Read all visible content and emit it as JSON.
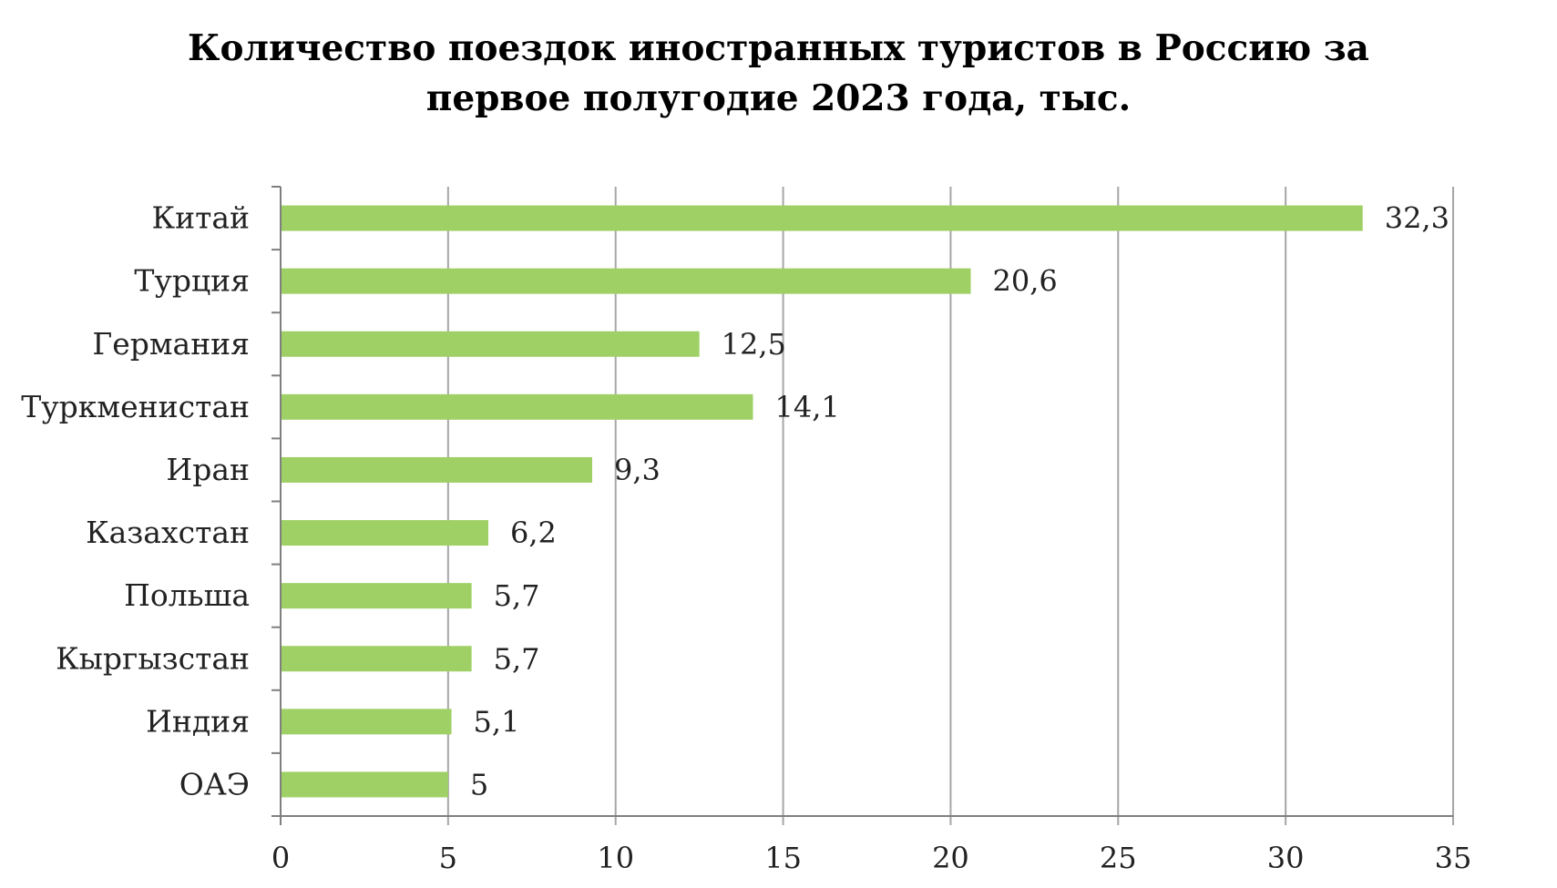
{
  "chart_data": {
    "type": "bar",
    "orientation": "horizontal",
    "title_lines": [
      "Количество поездок иностранных туристов в Россию за",
      "первое полугодие 2023 года, тыс."
    ],
    "categories": [
      "Китай",
      "Турция",
      "Германия",
      "Туркменистан",
      "Иран",
      "Казахстан",
      "Польша",
      "Кыргызстан",
      "Индия",
      "ОАЭ"
    ],
    "values": [
      32.3,
      20.6,
      12.5,
      14.1,
      9.3,
      6.2,
      5.7,
      5.7,
      5.1,
      5
    ],
    "data_labels": [
      "32,3",
      "20,6",
      "12,5",
      "14,1",
      "9,3",
      "6,2",
      "5,7",
      "5,7",
      "5,1",
      "5"
    ],
    "x_ticks": [
      0,
      5,
      10,
      15,
      20,
      25,
      30,
      35
    ],
    "xlim": [
      0,
      35
    ],
    "xlabel": "",
    "ylabel": "",
    "grid": "vertical",
    "legend": "none",
    "colors": {
      "bar": "#9FD065",
      "grid": "#A6A6A6",
      "axis": "#7F7F7F",
      "text": "#222222"
    }
  }
}
